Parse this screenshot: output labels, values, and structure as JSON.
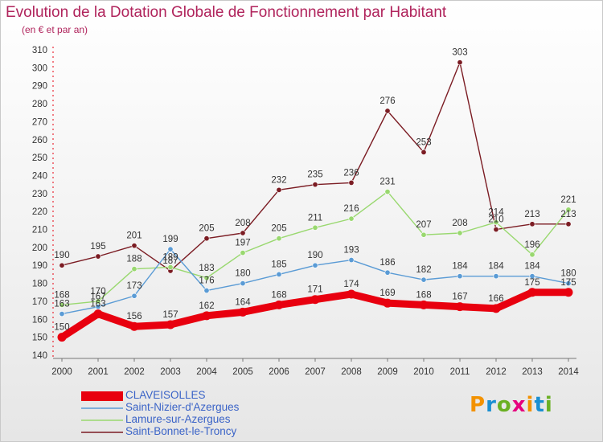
{
  "title": "Evolution de la Dotation Globale de Fonctionnement par Habitant",
  "subtitle": "(en € et par an)",
  "brand": {
    "name": "Proxiti",
    "letters": [
      "P",
      "r",
      "o",
      "x",
      "i",
      "t",
      "i"
    ],
    "letter_colors": [
      "#f39200",
      "#1a8fd1",
      "#6ab023",
      "#e6007e",
      "#f39200",
      "#1a8fd1",
      "#6ab023"
    ]
  },
  "chart_data": {
    "type": "line",
    "title": "Evolution de la Dotation Globale de Fonctionnement par Habitant",
    "subtitle": "(en € et par an)",
    "xlabel": "",
    "ylabel": "",
    "ylim": [
      140,
      310
    ],
    "yticks": [
      140,
      150,
      160,
      170,
      180,
      190,
      200,
      210,
      220,
      230,
      240,
      250,
      260,
      270,
      280,
      290,
      300,
      310
    ],
    "grid": false,
    "legend_position": "bottom-left",
    "x": [
      2000,
      2001,
      2002,
      2003,
      2004,
      2005,
      2006,
      2007,
      2008,
      2009,
      2010,
      2011,
      2012,
      2013,
      2014
    ],
    "series": [
      {
        "name": "CLAVEISOLLES",
        "color": "#e8000f",
        "values": [
          150,
          163,
          156,
          157,
          162,
          164,
          168,
          171,
          174,
          169,
          168,
          167,
          166,
          175,
          175
        ]
      },
      {
        "name": "Saint-Nizier-d'Azergues",
        "color": "#5a9bd5",
        "values": [
          163,
          167,
          173,
          199,
          176,
          180,
          185,
          190,
          193,
          186,
          182,
          184,
          184,
          184,
          180
        ]
      },
      {
        "name": "Lamure-sur-Azergues",
        "color": "#99d86f",
        "values": [
          168,
          170,
          188,
          189,
          183,
          197,
          205,
          211,
          216,
          231,
          207,
          208,
          214,
          196,
          221
        ]
      },
      {
        "name": "Saint-Bonnet-le-Troncy",
        "color": "#7b1c23",
        "values": [
          190,
          195,
          201,
          187,
          205,
          208,
          232,
          235,
          236,
          276,
          253,
          303,
          210,
          213,
          213
        ]
      }
    ],
    "data_labels": [
      [
        "150",
        "163",
        "156",
        "157",
        "162",
        "164",
        "168",
        "171",
        "174",
        "169",
        "168",
        "167",
        "166",
        "175",
        "175"
      ],
      [
        "163",
        "167",
        "173",
        "199",
        "176",
        "180",
        "185",
        "190",
        "193",
        "186",
        "182",
        "184",
        "184",
        "184",
        "180"
      ],
      [
        "168",
        "170",
        "188",
        "189",
        "183",
        "197",
        "205",
        "211",
        "216",
        "231",
        "207",
        "208",
        "214",
        "196",
        "221"
      ],
      [
        "190",
        "195",
        "201",
        "187",
        "205",
        "208",
        "232",
        "235",
        "236",
        "276",
        "253",
        "303",
        "210",
        "213",
        "213"
      ]
    ]
  }
}
